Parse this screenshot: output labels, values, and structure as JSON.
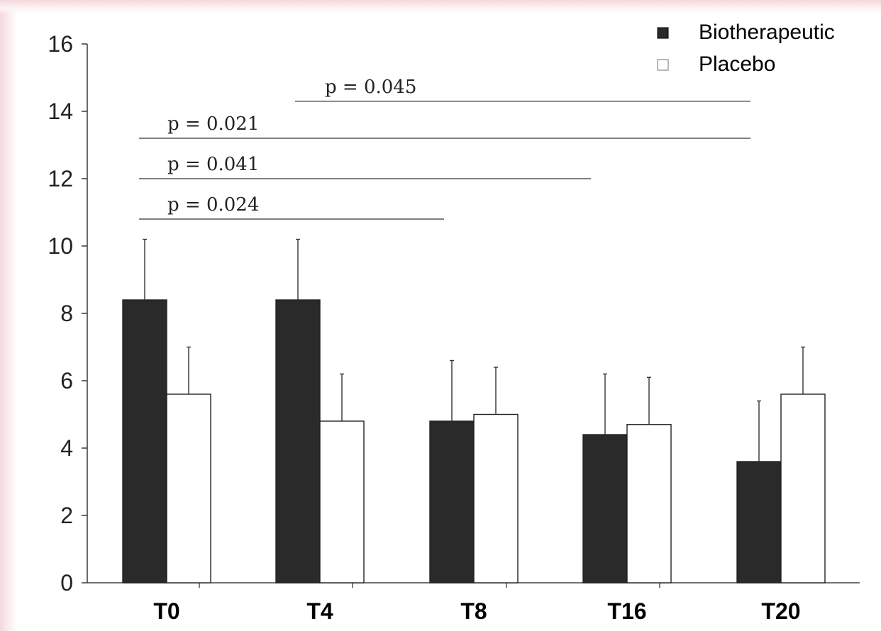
{
  "chart_data": {
    "type": "bar",
    "categories": [
      "T0",
      "T4",
      "T8",
      "T16",
      "T20"
    ],
    "series": [
      {
        "name": "Biotherapeutic",
        "values": [
          8.4,
          8.4,
          4.8,
          4.4,
          3.6
        ],
        "error": [
          1.8,
          1.8,
          1.8,
          1.8,
          1.8
        ],
        "color": "#2a2a2a"
      },
      {
        "name": "Placebo",
        "values": [
          5.6,
          4.8,
          5.0,
          4.7,
          5.6
        ],
        "error": [
          1.4,
          1.4,
          1.4,
          1.4,
          1.4
        ],
        "color": "#ffffff"
      }
    ],
    "ylim": [
      0,
      16
    ],
    "yticks": [
      0,
      2,
      4,
      6,
      8,
      10,
      12,
      14,
      16
    ],
    "title": "",
    "xlabel": "",
    "ylabel": "",
    "legend_position": "top-right",
    "grid": false,
    "annotations": [
      {
        "text": "p = 0.045",
        "from": "T4",
        "to": "T20",
        "y": 14.3
      },
      {
        "text": "p = 0.021",
        "from": "T0",
        "to": "T20",
        "y": 13.2
      },
      {
        "text": "p = 0.041",
        "from": "T0",
        "to": "T16",
        "y": 12.0
      },
      {
        "text": "p = 0.024",
        "from": "T0",
        "to": "T8",
        "y": 10.8
      }
    ]
  }
}
